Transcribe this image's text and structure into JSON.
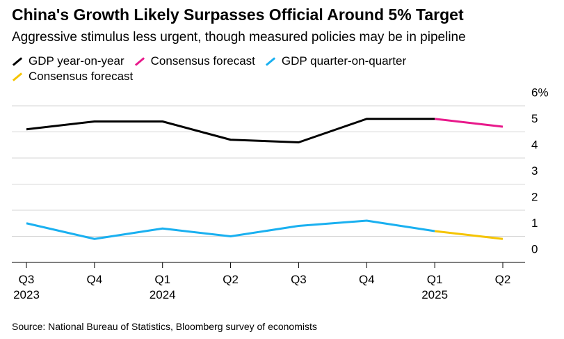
{
  "chart_data": {
    "type": "line",
    "title": "China's Growth Likely Surpasses Official Around 5% Target",
    "subtitle": "Aggressive stimulus less urgent, though measured policies may be in pipeline",
    "source": "Source: National Bureau of Statistics, Bloomberg survey of economists",
    "categories": [
      "Q3\n2023",
      "Q4",
      "Q1\n2024",
      "Q2",
      "Q3",
      "Q4",
      "Q1\n2025",
      "Q2"
    ],
    "series": [
      {
        "name": "GDP year-on-year",
        "color": "#000000",
        "values": [
          5.1,
          5.4,
          5.4,
          4.7,
          4.6,
          5.5,
          5.5,
          null
        ]
      },
      {
        "name": "Consensus forecast",
        "color": "#e8198b",
        "values": [
          null,
          null,
          null,
          null,
          null,
          null,
          5.5,
          5.2
        ]
      },
      {
        "name": "GDP quarter-on-quarter",
        "color": "#1ab0f0",
        "values": [
          1.5,
          0.9,
          1.3,
          1.0,
          1.4,
          1.6,
          1.2,
          null
        ]
      },
      {
        "name": "Consensus forecast",
        "color": "#f5c400",
        "values": [
          null,
          null,
          null,
          null,
          null,
          null,
          1.2,
          0.9
        ]
      }
    ],
    "ylim": [
      0,
      6
    ],
    "yticks": [
      0,
      1,
      2,
      3,
      4,
      5,
      {
        "value": 6,
        "label": "6%"
      }
    ],
    "grid": true
  }
}
